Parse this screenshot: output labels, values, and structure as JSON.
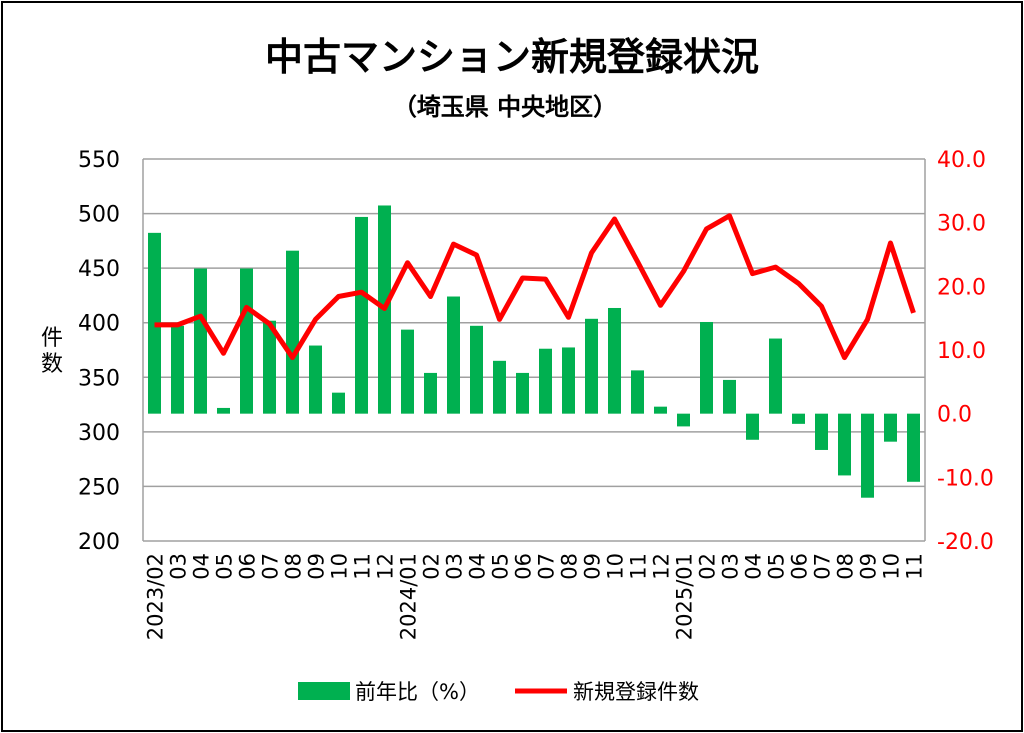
{
  "chart_data": {
    "type": "bar+line",
    "title": "中古マンション新規登録状況",
    "subtitle": "（埼玉県 中央地区）",
    "ylabel": "件数",
    "ylabel_right": "",
    "categories": [
      "2023/02",
      "03",
      "04",
      "05",
      "06",
      "07",
      "08",
      "09",
      "10",
      "11",
      "12",
      "2024/01",
      "02",
      "03",
      "04",
      "05",
      "06",
      "07",
      "08",
      "09",
      "10",
      "11",
      "12",
      "2025/01",
      "02",
      "03",
      "04",
      "05",
      "06",
      "07",
      "08",
      "09",
      "10",
      "11"
    ],
    "left_axis": {
      "range": [
        200,
        550
      ],
      "ticks": [
        "200",
        "250",
        "300",
        "350",
        "400",
        "450",
        "500",
        "550"
      ]
    },
    "right_axis": {
      "range": [
        -20,
        40
      ],
      "ticks": [
        "-20.0",
        "-10.0",
        "0.0",
        "10.0",
        "20.0",
        "30.0",
        "40.0"
      ],
      "color": "#ff0000"
    },
    "grid": true,
    "legend_position": "bottom",
    "series": [
      {
        "name": "前年比（%）",
        "type": "bar",
        "axis": "right",
        "color": "#00b050",
        "values": [
          28.4,
          13.8,
          22.8,
          0.9,
          22.8,
          14.6,
          25.6,
          10.7,
          3.3,
          30.9,
          32.7,
          13.2,
          6.4,
          18.4,
          13.8,
          8.3,
          6.4,
          10.2,
          10.4,
          14.9,
          16.6,
          6.8,
          1.1,
          -2.0,
          14.4,
          5.3,
          -4.1,
          11.8,
          -1.6,
          -5.7,
          -9.7,
          -13.2,
          -4.4,
          -10.7
        ]
      },
      {
        "name": "新規登録件数",
        "type": "line",
        "axis": "left",
        "color": "#ff0000",
        "values": [
          398,
          398,
          406,
          372,
          414,
          399,
          368,
          403,
          424,
          428,
          413,
          455,
          424,
          472,
          462,
          403,
          441,
          440,
          405,
          464,
          495,
          456,
          416,
          447,
          486,
          498,
          445,
          451,
          436,
          415,
          368,
          403,
          473,
          409
        ]
      }
    ]
  }
}
